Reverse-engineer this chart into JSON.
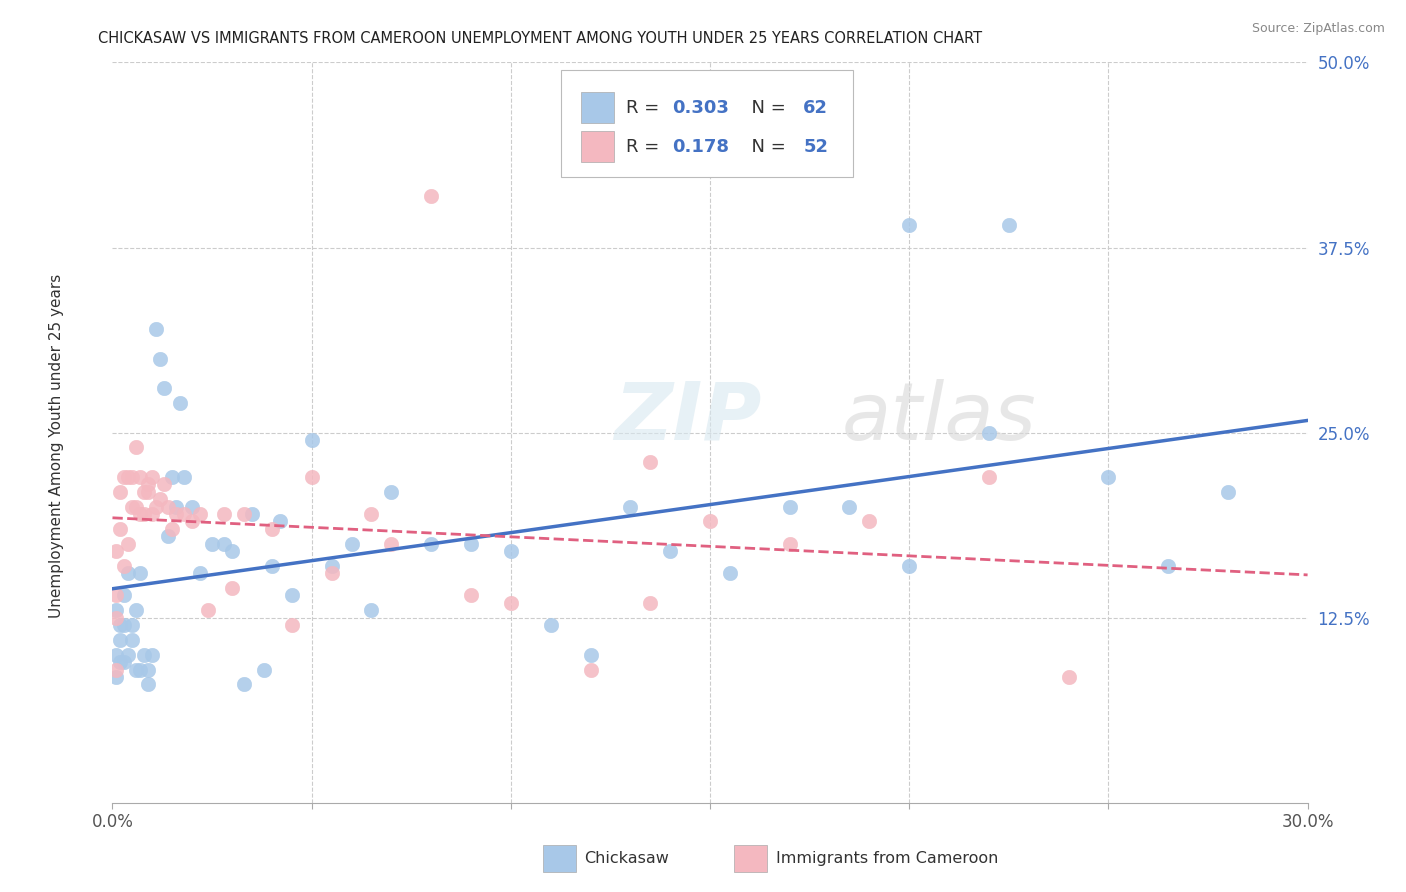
{
  "title": "CHICKASAW VS IMMIGRANTS FROM CAMEROON UNEMPLOYMENT AMONG YOUTH UNDER 25 YEARS CORRELATION CHART",
  "source": "Source: ZipAtlas.com",
  "ylabel": "Unemployment Among Youth under 25 years",
  "xlim": [
    0.0,
    0.3
  ],
  "ylim": [
    0.0,
    0.5
  ],
  "xticks": [
    0.0,
    0.05,
    0.1,
    0.15,
    0.2,
    0.25,
    0.3
  ],
  "xticklabels_show": [
    "0.0%",
    "",
    "",
    "",
    "",
    "",
    "30.0%"
  ],
  "yticks": [
    0.0,
    0.125,
    0.25,
    0.375,
    0.5
  ],
  "yticklabels": [
    "",
    "12.5%",
    "25.0%",
    "37.5%",
    "50.0%"
  ],
  "blue_color": "#a8c8e8",
  "pink_color": "#f4b8c0",
  "blue_line_color": "#4472c4",
  "pink_line_color": "#e06080",
  "watermark": "ZIPatlas",
  "blue_x": [
    0.001,
    0.001,
    0.001,
    0.002,
    0.002,
    0.002,
    0.003,
    0.003,
    0.003,
    0.004,
    0.004,
    0.005,
    0.005,
    0.006,
    0.006,
    0.007,
    0.007,
    0.008,
    0.009,
    0.009,
    0.01,
    0.011,
    0.012,
    0.013,
    0.014,
    0.015,
    0.016,
    0.017,
    0.018,
    0.02,
    0.022,
    0.025,
    0.028,
    0.03,
    0.033,
    0.035,
    0.038,
    0.04,
    0.042,
    0.045,
    0.05,
    0.055,
    0.06,
    0.065,
    0.07,
    0.08,
    0.09,
    0.1,
    0.11,
    0.12,
    0.13,
    0.14,
    0.155,
    0.17,
    0.185,
    0.2,
    0.225,
    0.2,
    0.22,
    0.25,
    0.265,
    0.28
  ],
  "blue_y": [
    0.13,
    0.1,
    0.085,
    0.11,
    0.095,
    0.12,
    0.12,
    0.14,
    0.095,
    0.1,
    0.155,
    0.11,
    0.12,
    0.13,
    0.09,
    0.09,
    0.155,
    0.1,
    0.08,
    0.09,
    0.1,
    0.32,
    0.3,
    0.28,
    0.18,
    0.22,
    0.2,
    0.27,
    0.22,
    0.2,
    0.155,
    0.175,
    0.175,
    0.17,
    0.08,
    0.195,
    0.09,
    0.16,
    0.19,
    0.14,
    0.245,
    0.16,
    0.175,
    0.13,
    0.21,
    0.175,
    0.175,
    0.17,
    0.12,
    0.1,
    0.2,
    0.17,
    0.155,
    0.2,
    0.2,
    0.39,
    0.39,
    0.16,
    0.25,
    0.22,
    0.16,
    0.21
  ],
  "pink_x": [
    0.001,
    0.001,
    0.001,
    0.001,
    0.002,
    0.002,
    0.003,
    0.003,
    0.004,
    0.004,
    0.005,
    0.005,
    0.006,
    0.006,
    0.007,
    0.007,
    0.008,
    0.008,
    0.009,
    0.009,
    0.01,
    0.01,
    0.011,
    0.012,
    0.013,
    0.014,
    0.015,
    0.016,
    0.018,
    0.02,
    0.022,
    0.024,
    0.028,
    0.03,
    0.033,
    0.04,
    0.045,
    0.05,
    0.055,
    0.065,
    0.07,
    0.08,
    0.09,
    0.1,
    0.12,
    0.135,
    0.15,
    0.17,
    0.19,
    0.22,
    0.24,
    0.135
  ],
  "pink_y": [
    0.17,
    0.14,
    0.125,
    0.09,
    0.21,
    0.185,
    0.22,
    0.16,
    0.22,
    0.175,
    0.22,
    0.2,
    0.24,
    0.2,
    0.22,
    0.195,
    0.21,
    0.195,
    0.215,
    0.21,
    0.22,
    0.195,
    0.2,
    0.205,
    0.215,
    0.2,
    0.185,
    0.195,
    0.195,
    0.19,
    0.195,
    0.13,
    0.195,
    0.145,
    0.195,
    0.185,
    0.12,
    0.22,
    0.155,
    0.195,
    0.175,
    0.41,
    0.14,
    0.135,
    0.09,
    0.23,
    0.19,
    0.175,
    0.19,
    0.22,
    0.085,
    0.135
  ]
}
